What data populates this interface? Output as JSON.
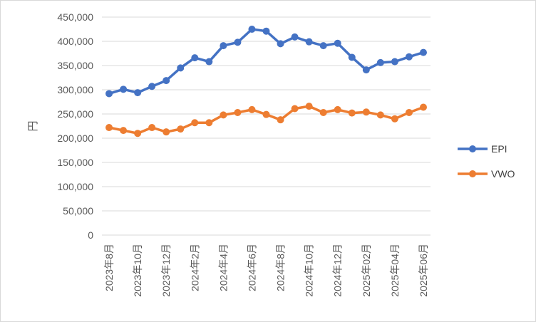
{
  "chart_data": {
    "type": "line",
    "title": "",
    "ylabel": "円",
    "xlabel": "",
    "ylim": [
      0,
      450000
    ],
    "y_tick_step": 50000,
    "y_tick_labels": [
      "0",
      "50,000",
      "100,000",
      "150,000",
      "200,000",
      "250,000",
      "300,000",
      "350,000",
      "400,000",
      "450,000"
    ],
    "grid": true,
    "legend_position": "right",
    "categories": [
      "2023年8月",
      "2023年9月",
      "2023年10月",
      "2023年11月",
      "2023年12月",
      "2024年1月",
      "2024年2月",
      "2024年3月",
      "2024年4月",
      "2024年5月",
      "2024年6月",
      "2024年7月",
      "2024年8月",
      "2024年9月",
      "2024年10月",
      "2024年11月",
      "2024年12月",
      "2025年01月",
      "2025年02月",
      "2025年03月",
      "2025年04月",
      "2025年05月",
      "2025年06月"
    ],
    "x_tick_labels": [
      "2023年8月",
      "2023年10月",
      "2023年12月",
      "2024年2月",
      "2024年4月",
      "2024年6月",
      "2024年8月",
      "2024年10月",
      "2024年12月",
      "2025年02月",
      "2025年04月",
      "2025年06月"
    ],
    "series": [
      {
        "name": "EPI",
        "color": "#4472c4",
        "values": [
          292000,
          301000,
          294000,
          307000,
          319000,
          345000,
          366000,
          358000,
          391000,
          398000,
          425000,
          421000,
          395000,
          409000,
          399000,
          391000,
          396000,
          367000,
          341000,
          356000,
          358000,
          368000,
          377000
        ]
      },
      {
        "name": "VWO",
        "color": "#ed7d31",
        "values": [
          222000,
          216000,
          210000,
          222000,
          213000,
          219000,
          232000,
          232000,
          248000,
          253000,
          259000,
          249000,
          238000,
          261000,
          266000,
          253000,
          259000,
          252000,
          254000,
          248000,
          240000,
          253000,
          264000
        ]
      }
    ]
  }
}
